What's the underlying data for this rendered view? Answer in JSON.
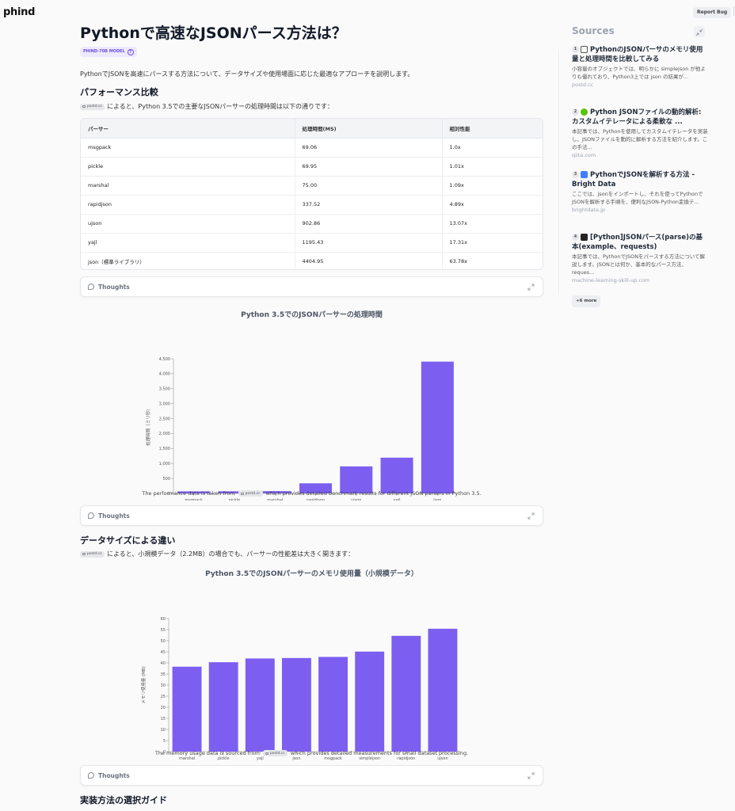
{
  "app": {
    "logo": "phind",
    "report_bug": "Report Bug"
  },
  "page": {
    "title": "Pythonで高速なJSONパース方法は？",
    "model_badge": "PHIND-70B MODEL",
    "intro": "PythonでJSONを高速にパースする方法について、データサイズや使用場面に応じた最適なアプローチを説明します。"
  },
  "section1": {
    "heading": "パフォーマンス比較",
    "cite_chip": "postd.cc",
    "cite_text": "によると、Python 3.5での主要なJSONパーサーの処理時間は以下の通りです：",
    "table": {
      "headers": [
        "パーサー",
        "処理時間(MS)",
        "相対性能"
      ],
      "rows": [
        [
          "msgpack",
          "69.06",
          "1.0x"
        ],
        [
          "pickle",
          "69.95",
          "1.01x"
        ],
        [
          "marshal",
          "75.00",
          "1.09x"
        ],
        [
          "rapidjson",
          "337.52",
          "4.89x"
        ],
        [
          "ujson",
          "902.86",
          "13.07x"
        ],
        [
          "yajl",
          "1195.43",
          "17.31x"
        ],
        [
          "json（標準ライブラリ）",
          "4404.95",
          "63.78x"
        ]
      ]
    },
    "thoughts_label": "Thoughts"
  },
  "chart1_caption": {
    "before": "The performance data is taken from",
    "chip": "postd.cc",
    "after": "which provides detailed benchmark results for different JSON parsers in Python 3.5."
  },
  "thoughts2_label": "Thoughts",
  "section2": {
    "heading": "データサイズによる違い",
    "cite_chip": "postd.cc",
    "cite_text": "によると、小規模データ（2.2MB）の場合でも、パーサーの性能差は大きく開きます："
  },
  "chart2_caption": {
    "before": "The memory usage data is sourced from",
    "chip": "postd.cc",
    "after": "which provides detailed measurements for small dataset processing."
  },
  "thoughts3_label": "Thoughts",
  "section3": {
    "heading": "実装方法の選択ガイド"
  },
  "chart_data": [
    {
      "type": "bar",
      "title": "Python 3.5でのJSONパーサーの処理時間",
      "ylabel": "処理時間（ミリ秒）",
      "xlabel": "",
      "categories": [
        "msgpack",
        "pickle",
        "marshal",
        "rapidjson",
        "ujson",
        "yajl",
        "json"
      ],
      "values": [
        69.06,
        69.95,
        75.0,
        337.52,
        902.86,
        1195.43,
        4404.95
      ],
      "ylim": [
        0,
        4500
      ],
      "yticks": [
        0,
        500,
        1000,
        1500,
        2000,
        2500,
        3000,
        3500,
        4000,
        4500
      ],
      "ytick_labels": [
        "0",
        "500",
        "1,000",
        "1,500",
        "2,000",
        "2,500",
        "3,000",
        "3,500",
        "4,000",
        "4,500"
      ],
      "color": "#7c5ff0",
      "grid": false
    },
    {
      "type": "bar",
      "title": "Python 3.5でのJSONパーサーのメモリ使用量（小規模データ）",
      "ylabel": "メモリ使用量 (MB)",
      "xlabel": "",
      "categories": [
        "marshal",
        "pickle",
        "yajl",
        "json",
        "msgpack",
        "simplejson",
        "rapidjson",
        "ujson"
      ],
      "values": [
        38.3,
        40.3,
        42.0,
        42.2,
        42.7,
        45.1,
        52.2,
        55.4
      ],
      "ylim": [
        0,
        60
      ],
      "yticks": [
        0,
        5,
        10,
        15,
        20,
        25,
        30,
        35,
        40,
        45,
        50,
        55,
        60
      ],
      "ytick_labels": [
        "0",
        "5",
        "10",
        "15",
        "20",
        "25",
        "30",
        "35",
        "40",
        "45",
        "50",
        "55",
        "60"
      ],
      "color": "#7c5ff0",
      "grid": false
    }
  ],
  "sources": {
    "title": "Sources",
    "items": [
      {
        "num": "1",
        "title": "PythonのJSONパーサのメモリ使用量と処理時間を比較してみる",
        "desc": "小容量のオブジェクトでは、明らかに simplejson が他よりも優れており、Python3上では json の結果が...",
        "domain": "postd.cc",
        "icon": "postd-favicon",
        "icon_color": "#555555"
      },
      {
        "num": "2",
        "title": "Python JSONファイルの動的解析: カスタムイテレータによる柔軟な ...",
        "desc": "本記事では、Pythonを使用してカスタムイテレータを実装し、JSONファイルを動的に解析する方法を紹介します。この手法...",
        "domain": "qiita.com",
        "icon": "qiita-favicon",
        "icon_color": "#55c500"
      },
      {
        "num": "3",
        "title": "PythonでJSONを解析する方法 - Bright Data",
        "desc": "ここでは、jsonをインポートし、それを使ってPythonでJSONを解析する手順を、便利なJSON-Python変換テ...",
        "domain": "brightdata.jp",
        "icon": "brightdata-favicon",
        "icon_color": "#3d7ffc"
      },
      {
        "num": "4",
        "title": "[Python]JSONパース(parse)の基本(example、requests)",
        "desc": "本記事では、PythonでJSONをパースする方法について解説します。JSONとは何か、基本的なパース方法、reques...",
        "domain": "machine-learning-skill-up.com",
        "icon": "mlsu-favicon",
        "icon_color": "#222222"
      }
    ],
    "more": "+6 more"
  }
}
